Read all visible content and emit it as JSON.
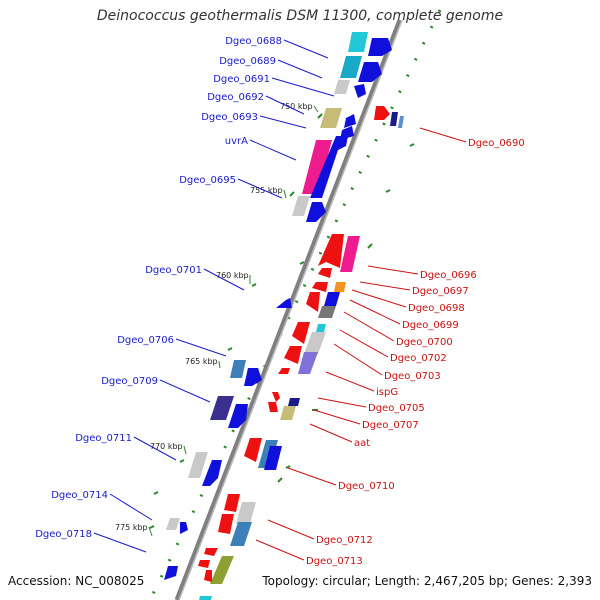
{
  "title": "Deinococcus geothermalis DSM 11300, complete genome",
  "accession": "Accession: NC_008025",
  "topology": "Topology: circular; Length: 2,467,205 bp; Genes: 2,393",
  "kbp_ticks": [
    "750 kbp",
    "755 kbp",
    "760 kbp",
    "765 kbp",
    "770 kbp",
    "775 kbp"
  ],
  "left_genes": [
    "Dgeo_0688",
    "Dgeo_0689",
    "Dgeo_0691",
    "Dgeo_0692",
    "Dgeo_0693",
    "uvrA",
    "Dgeo_0695",
    "Dgeo_0701",
    "Dgeo_0706",
    "Dgeo_0709",
    "Dgeo_0711",
    "Dgeo_0714",
    "Dgeo_0718"
  ],
  "right_genes": [
    "Dgeo_0690",
    "Dgeo_0696",
    "Dgeo_0697",
    "Dgeo_0698",
    "Dgeo_0699",
    "Dgeo_0700",
    "Dgeo_0702",
    "Dgeo_0703",
    "ispG",
    "Dgeo_0705",
    "Dgeo_0707",
    "aat",
    "Dgeo_0710",
    "Dgeo_0712",
    "Dgeo_0713"
  ],
  "colors": {
    "left_label": "#1a1acc",
    "right_label": "#cc1111",
    "backbone": "#808080",
    "gc_tick": "#2a8a2a"
  }
}
